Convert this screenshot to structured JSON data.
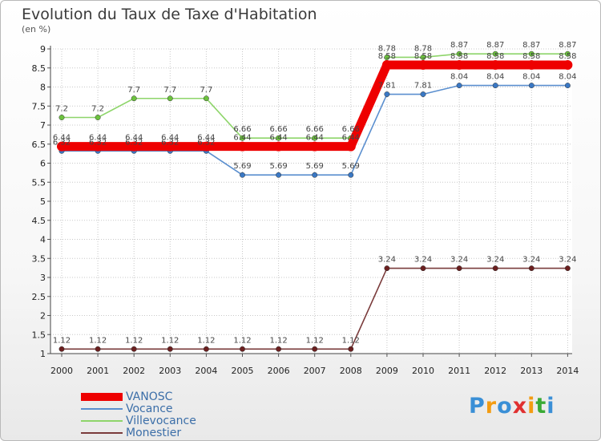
{
  "header": {
    "title": "Evolution du Taux de Taxe d'Habitation",
    "unit": "(en %)"
  },
  "chart_data": {
    "type": "line",
    "title": "Evolution du Taux de Taxe d'Habitation",
    "ylabel": "(en %)",
    "xlabel": "",
    "x": [
      "2000",
      "2001",
      "2002",
      "2003",
      "2004",
      "2005",
      "2006",
      "2007",
      "2008",
      "2009",
      "2010",
      "2011",
      "2012",
      "2013",
      "2014"
    ],
    "yticks": [
      "1",
      "1.5",
      "2",
      "2.5",
      "3",
      "3.5",
      "4",
      "4.5",
      "5",
      "5.5",
      "6",
      "6.5",
      "7",
      "7.5",
      "8",
      "8.5",
      "9"
    ],
    "ylim": [
      1,
      9
    ],
    "legend_position": "bottom-left",
    "series": [
      {
        "name": "VANOSC",
        "color": "#ee0000",
        "values": [
          6.44,
          6.44,
          6.44,
          6.44,
          6.44,
          6.44,
          6.44,
          6.44,
          6.44,
          8.58,
          8.58,
          8.58,
          8.58,
          8.58,
          8.58
        ],
        "labels": [
          "6.44",
          "6.44",
          "6.44",
          "6.44",
          "6.44",
          "6.44",
          "6.44",
          "6.44",
          "6.44",
          "8.58",
          "8.58",
          "8.58",
          "8.58",
          "8.58",
          "8.58"
        ]
      },
      {
        "name": "Vocance",
        "color": "#5b8fcf",
        "values": [
          6.32,
          6.32,
          6.32,
          6.32,
          6.32,
          5.69,
          5.69,
          5.69,
          5.69,
          7.81,
          7.81,
          8.04,
          8.04,
          8.04,
          8.04
        ],
        "labels": [
          "6.32",
          "6.32",
          "6.32",
          "6.32",
          "6.32",
          "5.69",
          "5.69",
          "5.69",
          "5.69",
          "7.81",
          "7.81",
          "8.04",
          "8.04",
          "8.04",
          "8.04"
        ]
      },
      {
        "name": "Villevocance",
        "color": "#8ed56a",
        "values": [
          7.2,
          7.2,
          7.7,
          7.7,
          7.7,
          6.66,
          6.66,
          6.66,
          6.66,
          8.78,
          8.78,
          8.87,
          8.87,
          8.87,
          8.87
        ],
        "labels": [
          "7.2",
          "7.2",
          "7.7",
          "7.7",
          "7.7",
          "6.66",
          "6.66",
          "6.66",
          "6.66",
          "8.78",
          "8.78",
          "8.87",
          "8.87",
          "8.87",
          "8.87"
        ]
      },
      {
        "name": "Monestier",
        "color": "#7a3b3b",
        "values": [
          1.12,
          1.12,
          1.12,
          1.12,
          1.12,
          1.12,
          1.12,
          1.12,
          1.12,
          3.24,
          3.24,
          3.24,
          3.24,
          3.24,
          3.24
        ],
        "labels": [
          "1.12",
          "1.12",
          "1.12",
          "1.12",
          "1.12",
          "1.12",
          "1.12",
          "1.12",
          "1.12",
          "3.24",
          "3.24",
          "3.24",
          "3.24",
          "3.24",
          "3.24"
        ]
      }
    ]
  },
  "legend": {
    "items": [
      {
        "label": "VANOSC",
        "color": "#ee0000"
      },
      {
        "label": "Vocance",
        "color": "#5b8fcf"
      },
      {
        "label": "Villevocance",
        "color": "#8ed56a"
      },
      {
        "label": "Monestier",
        "color": "#7a3b3b"
      }
    ]
  },
  "logo": {
    "text": "Proxiti",
    "letters": [
      {
        "ch": "P",
        "color": "#3a8fd6"
      },
      {
        "ch": "r",
        "color": "#f39c12"
      },
      {
        "ch": "o",
        "color": "#3a8fd6"
      },
      {
        "ch": "x",
        "color": "#e03030"
      },
      {
        "ch": "i",
        "color": "#f39c12"
      },
      {
        "ch": "t",
        "color": "#3aaa35"
      },
      {
        "ch": "i",
        "color": "#3a8fd6"
      }
    ]
  }
}
